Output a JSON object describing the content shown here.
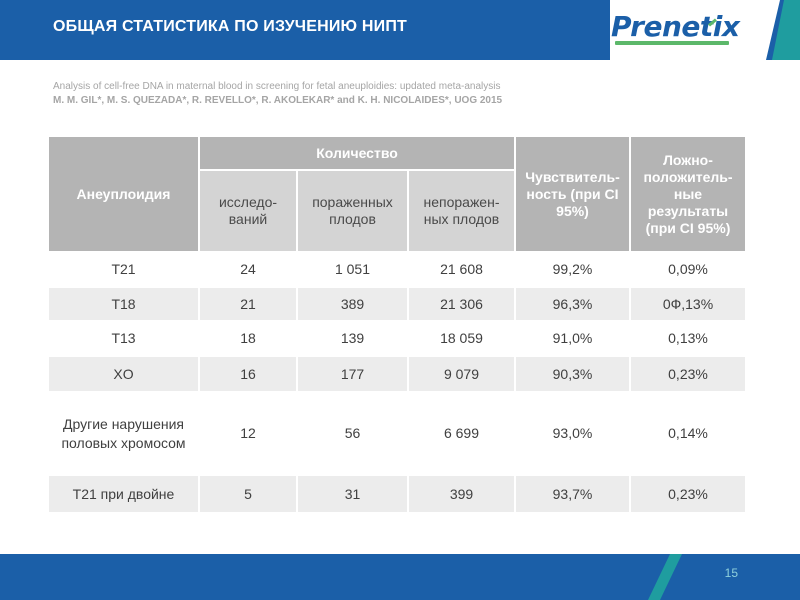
{
  "header": {
    "title": "ОБЩАЯ СТАТИСТИКА ПО ИЗУЧЕНИЮ НИПТ",
    "logo_text": "Prenetix",
    "colors": {
      "primary": "#1b5fa8",
      "accent_teal": "#1f9d9f",
      "accent_green": "#5cb86a"
    }
  },
  "citation": {
    "title": "Analysis of cell-free DNA in maternal blood in screening for fetal aneuploidies: updated meta-analysis",
    "authors": "M. M. GIL*, M. S. QUEZADA*, R. REVELLO*, R. AKOLEKAR* and K. H. NICOLAIDES*, UOG 2015"
  },
  "table": {
    "headers": {
      "aneuploidy": "Анеуплоидия",
      "quantity": "Количество",
      "studies": "исследо-ваний",
      "affected": "пораженных плодов",
      "unaffected": "непоражен-ных плодов",
      "sensitivity": "Чувствитель-ность (при CI 95%)",
      "false_positive": "Ложно-положитель-ные результаты (при CI 95%)"
    },
    "rows": [
      {
        "name": "T21",
        "studies": "24",
        "affected": "1 051",
        "unaffected": "21 608",
        "sensitivity": "99,2%",
        "fpr": "0,09%"
      },
      {
        "name": "T18",
        "studies": "21",
        "affected": "389",
        "unaffected": "21 306",
        "sensitivity": "96,3%",
        "fpr": "0Ф,13%"
      },
      {
        "name": "T13",
        "studies": "18",
        "affected": "139",
        "unaffected": "18 059",
        "sensitivity": "91,0%",
        "fpr": "0,13%"
      },
      {
        "name": "XO",
        "studies": "16",
        "affected": "177",
        "unaffected": "9 079",
        "sensitivity": "90,3%",
        "fpr": "0,23%"
      },
      {
        "name": "Другие нарушения половых хромосом",
        "studies": "12",
        "affected": "56",
        "unaffected": "6 699",
        "sensitivity": "93,0%",
        "fpr": "0,14%"
      },
      {
        "name": "Т21 при двойне",
        "studies": "5",
        "affected": "31",
        "unaffected": "399",
        "sensitivity": "93,7%",
        "fpr": "0,23%"
      }
    ]
  },
  "footer": {
    "page_number": "15"
  }
}
